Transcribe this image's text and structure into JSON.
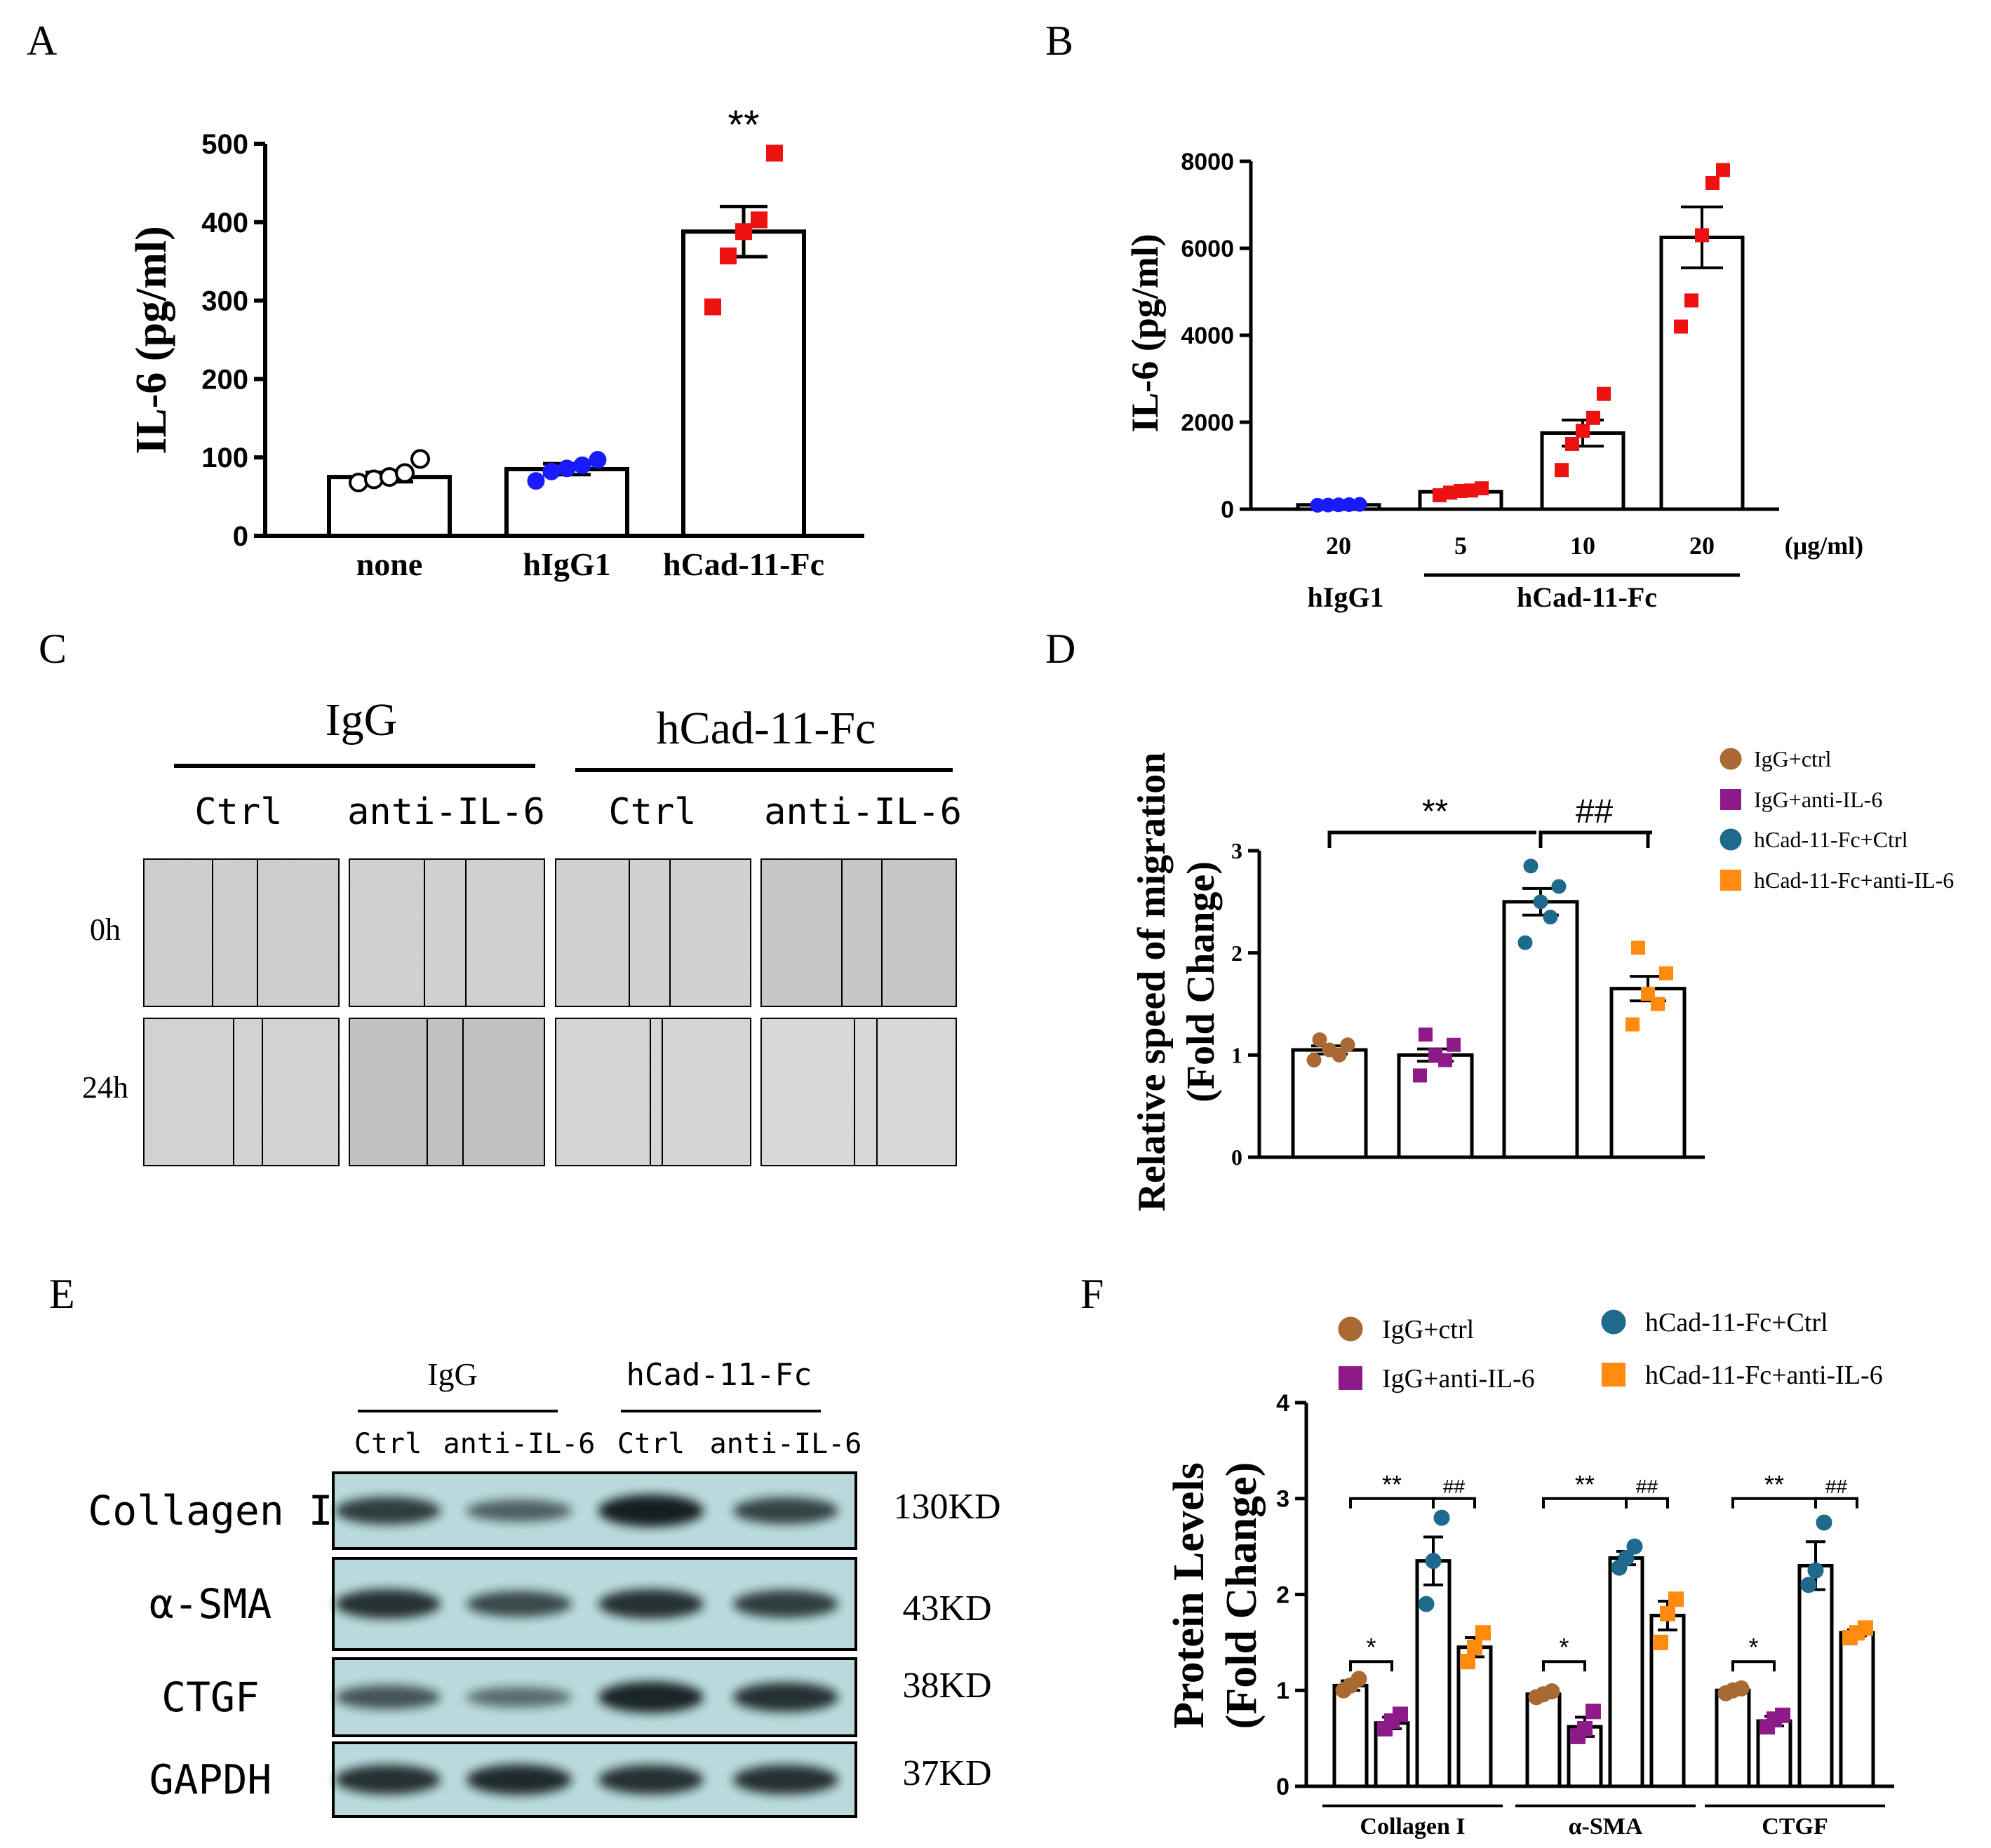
{
  "panels": {
    "A": "A",
    "B": "B",
    "C": "C",
    "D": "D",
    "E": "E",
    "F": "F"
  },
  "chart_data": [
    {
      "id": "A",
      "type": "bar",
      "ylabel": "IL-6 (pg/ml)",
      "ylim": [
        0,
        500
      ],
      "yticks": [
        "0",
        "100",
        "200",
        "300",
        "400",
        "500"
      ],
      "categories": [
        "none",
        "hIgG1",
        "hCad-11-Fc"
      ],
      "values": [
        75,
        85,
        388
      ],
      "errors": [
        6,
        7,
        32
      ],
      "points": [
        [
          68,
          72,
          75,
          80,
          98
        ],
        [
          70,
          82,
          86,
          90,
          97
        ],
        [
          292,
          357,
          388,
          403,
          488
        ]
      ],
      "point_colors": [
        "#ffffff",
        "#1a1aff",
        "#ee1111"
      ],
      "point_shapes": [
        "circle",
        "circle",
        "square"
      ],
      "annotations": [
        {
          "category": "hCad-11-Fc",
          "text": "**"
        }
      ]
    },
    {
      "id": "B",
      "type": "bar",
      "ylabel": "IL-6 (pg/ml)",
      "ylim": [
        0,
        8000
      ],
      "yticks": [
        "0",
        "2000",
        "4000",
        "6000",
        "8000"
      ],
      "categories": [
        "20",
        "5",
        "10",
        "20"
      ],
      "unit": "(μg/ml)",
      "groups": [
        {
          "label": "hIgG1",
          "categories": [
            0
          ]
        },
        {
          "label": "hCad-11-Fc",
          "categories": [
            1,
            3
          ]
        }
      ],
      "values": [
        100,
        400,
        1750,
        6250
      ],
      "errors": [
        20,
        40,
        300,
        700
      ],
      "points": [
        [
          90,
          95,
          100,
          105,
          110
        ],
        [
          320,
          380,
          420,
          430,
          480
        ],
        [
          900,
          1500,
          1800,
          2100,
          2650
        ],
        [
          4200,
          4800,
          6300,
          7500,
          7800
        ]
      ],
      "point_colors": [
        "#1a1aff",
        "#ee1111",
        "#ee1111",
        "#ee1111"
      ],
      "point_shapes": [
        "circle",
        "square",
        "square",
        "square"
      ]
    },
    {
      "id": "D",
      "type": "bar",
      "ylabel_line1": "Relative speed of migration",
      "ylabel_line2": "(Fold Change)",
      "ylim": [
        0,
        3
      ],
      "yticks": [
        "0",
        "1",
        "2",
        "3"
      ],
      "series": [
        {
          "name": "IgG+ctrl",
          "value": 1.05,
          "error": 0.04,
          "points": [
            0.95,
            1.0,
            1.05,
            1.1,
            1.15
          ],
          "color": "#a86a32",
          "shape": "circle"
        },
        {
          "name": "IgG+anti-IL-6",
          "value": 1.0,
          "error": 0.06,
          "points": [
            0.8,
            0.95,
            1.0,
            1.1,
            1.2
          ],
          "color": "#8e1a8a",
          "shape": "square"
        },
        {
          "name": "hCad-11-Fc+Ctrl",
          "value": 2.5,
          "error": 0.13,
          "points": [
            2.1,
            2.35,
            2.5,
            2.65,
            2.85
          ],
          "color": "#1f6a8c",
          "shape": "circle"
        },
        {
          "name": "hCad-11-Fc+anti-IL-6",
          "value": 1.65,
          "error": 0.12,
          "points": [
            1.3,
            1.5,
            1.6,
            1.8,
            2.05
          ],
          "color": "#ff8a10",
          "shape": "square"
        }
      ],
      "annotations": [
        {
          "from": 0,
          "to": 2,
          "text": "**"
        },
        {
          "from": 2,
          "to": 3,
          "text": "##"
        }
      ]
    },
    {
      "id": "F",
      "type": "bar",
      "ylabel_line1": "Protein Levels",
      "ylabel_line2": "(Fold Change)",
      "ylim": [
        0,
        4
      ],
      "yticks": [
        "0",
        "1",
        "2",
        "3",
        "4"
      ],
      "categories": [
        "Collagen I",
        "α-SMA",
        "CTGF"
      ],
      "series": [
        {
          "name": "IgG+ctrl",
          "color": "#a86a32",
          "shape": "circle",
          "values": [
            1.05,
            0.96,
            1.0
          ],
          "errors": [
            0.05,
            0.02,
            0.02
          ],
          "points": [
            [
              1.0,
              1.05,
              1.12
            ],
            [
              0.93,
              0.96,
              0.99
            ],
            [
              0.97,
              1.0,
              1.02
            ]
          ]
        },
        {
          "name": "IgG+anti-IL-6",
          "color": "#8e1a8a",
          "shape": "square",
          "values": [
            0.66,
            0.62,
            0.68
          ],
          "errors": [
            0.06,
            0.1,
            0.05
          ],
          "points": [
            [
              0.6,
              0.68,
              0.75
            ],
            [
              0.52,
              0.6,
              0.78
            ],
            [
              0.62,
              0.7,
              0.74
            ]
          ]
        },
        {
          "name": "hCad-11-Fc+Ctrl",
          "color": "#1f6a8c",
          "shape": "circle",
          "values": [
            2.35,
            2.38,
            2.3
          ],
          "errors": [
            0.25,
            0.07,
            0.25
          ],
          "points": [
            [
              1.9,
              2.35,
              2.8
            ],
            [
              2.28,
              2.38,
              2.5
            ],
            [
              2.1,
              2.25,
              2.75
            ]
          ]
        },
        {
          "name": "hCad-11-Fc+anti-IL-6",
          "color": "#ff8a10",
          "shape": "square",
          "values": [
            1.45,
            1.78,
            1.6
          ],
          "errors": [
            0.1,
            0.15,
            0.03
          ],
          "points": [
            [
              1.3,
              1.45,
              1.6
            ],
            [
              1.5,
              1.8,
              1.95
            ],
            [
              1.55,
              1.6,
              1.65
            ]
          ]
        }
      ],
      "annotations": [
        {
          "category": 0,
          "from": 0,
          "to": 1,
          "text": "*"
        },
        {
          "category": 0,
          "from": 0,
          "to": 2,
          "text": "**"
        },
        {
          "category": 0,
          "from": 2,
          "to": 3,
          "text": "##"
        },
        {
          "category": 1,
          "from": 0,
          "to": 1,
          "text": "*"
        },
        {
          "category": 1,
          "from": 0,
          "to": 2,
          "text": "**"
        },
        {
          "category": 1,
          "from": 2,
          "to": 3,
          "text": "##"
        },
        {
          "category": 2,
          "from": 0,
          "to": 1,
          "text": "*"
        },
        {
          "category": 2,
          "from": 0,
          "to": 2,
          "text": "**"
        },
        {
          "category": 2,
          "from": 2,
          "to": 3,
          "text": "##"
        }
      ]
    }
  ],
  "scratch": {
    "group1": "IgG",
    "group2": "hCad-11-Fc",
    "cols": [
      "Ctrl",
      "anti-IL-6",
      "Ctrl",
      "anti-IL-6"
    ],
    "rows": [
      "0h",
      "24h"
    ]
  },
  "blot": {
    "group1": "IgG",
    "group2": "hCad-11-Fc",
    "cols": [
      "Ctrl",
      "anti-IL-6",
      "Ctrl",
      "anti-IL-6"
    ],
    "rows": [
      {
        "name": "Collagen I",
        "size": "130KD"
      },
      {
        "name": "α-SMA",
        "size": "43KD"
      },
      {
        "name": "CTGF",
        "size": "38KD"
      },
      {
        "name": "GAPDH",
        "size": "37KD"
      }
    ],
    "band_intensity": [
      [
        0.75,
        0.45,
        1.0,
        0.7
      ],
      [
        0.85,
        0.65,
        0.85,
        0.75
      ],
      [
        0.55,
        0.35,
        0.95,
        0.85
      ],
      [
        0.85,
        0.9,
        0.85,
        0.85
      ]
    ]
  }
}
